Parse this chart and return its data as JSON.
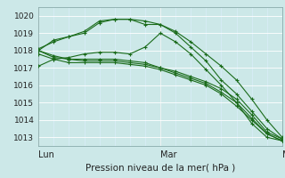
{
  "xlabel": "Pression niveau de la mer( hPa )",
  "ylim": [
    1012.5,
    1020.5
  ],
  "xlim": [
    0,
    48
  ],
  "yticks": [
    1013,
    1014,
    1015,
    1016,
    1017,
    1018,
    1019,
    1020
  ],
  "xtick_positions": [
    0,
    24,
    48
  ],
  "xtick_labels": [
    "Lun",
    "Mar",
    "Mer"
  ],
  "bg_color": "#cce8e8",
  "grid_major_color": "#aacccc",
  "grid_minor_color": "#bbdddd",
  "line_color": "#1a6b1a",
  "lines": [
    [
      0,
      1018.0,
      3,
      1018.6,
      6,
      1018.8,
      9,
      1019.1,
      12,
      1019.7,
      15,
      1019.8,
      18,
      1019.8,
      21,
      1019.7,
      24,
      1019.5,
      27,
      1019.1,
      30,
      1018.5,
      33,
      1017.8,
      36,
      1017.1,
      39,
      1016.3,
      42,
      1015.2,
      45,
      1014.0,
      48,
      1013.0
    ],
    [
      0,
      1018.0,
      3,
      1017.6,
      6,
      1017.5,
      9,
      1017.5,
      12,
      1017.5,
      15,
      1017.5,
      18,
      1017.4,
      21,
      1017.3,
      24,
      1017.0,
      27,
      1016.8,
      30,
      1016.5,
      33,
      1016.2,
      36,
      1015.8,
      39,
      1015.2,
      42,
      1014.3,
      45,
      1013.3,
      48,
      1012.9
    ],
    [
      0,
      1017.8,
      3,
      1017.5,
      6,
      1017.3,
      9,
      1017.3,
      12,
      1017.3,
      15,
      1017.3,
      18,
      1017.2,
      21,
      1017.1,
      24,
      1016.9,
      27,
      1016.6,
      30,
      1016.3,
      33,
      1016.0,
      36,
      1015.5,
      39,
      1014.8,
      42,
      1014.0,
      45,
      1013.2,
      48,
      1012.8
    ],
    [
      0,
      1018.0,
      3,
      1017.7,
      6,
      1017.5,
      9,
      1017.4,
      12,
      1017.4,
      15,
      1017.4,
      18,
      1017.3,
      21,
      1017.2,
      24,
      1017.0,
      27,
      1016.7,
      30,
      1016.4,
      33,
      1016.1,
      36,
      1015.6,
      39,
      1015.0,
      42,
      1014.1,
      45,
      1013.2,
      48,
      1012.8
    ],
    [
      0,
      1017.1,
      3,
      1017.5,
      6,
      1017.6,
      9,
      1017.8,
      12,
      1017.9,
      15,
      1017.9,
      18,
      1017.8,
      21,
      1018.2,
      24,
      1019.0,
      27,
      1018.5,
      30,
      1017.8,
      33,
      1016.9,
      36,
      1016.0,
      39,
      1015.0,
      42,
      1013.8,
      45,
      1013.0,
      48,
      1012.8
    ],
    [
      0,
      1018.1,
      3,
      1018.5,
      6,
      1018.8,
      9,
      1019.0,
      12,
      1019.6,
      15,
      1019.8,
      18,
      1019.8,
      21,
      1019.5,
      24,
      1019.5,
      27,
      1019.0,
      30,
      1018.2,
      33,
      1017.4,
      36,
      1016.3,
      39,
      1015.5,
      42,
      1014.5,
      45,
      1013.5,
      48,
      1012.9
    ]
  ]
}
